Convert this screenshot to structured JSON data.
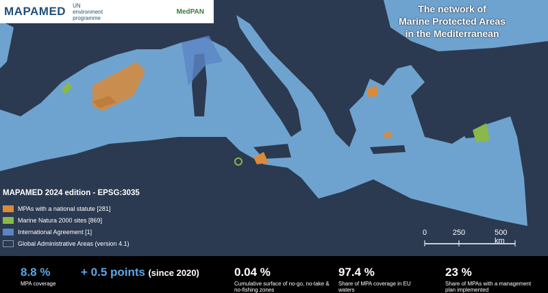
{
  "logo": {
    "brand": "MAPAMED",
    "partners": [
      "UN environment programme",
      "MedPAN"
    ]
  },
  "title": [
    "The network of",
    "Marine Protected Areas",
    "in the Mediterranean"
  ],
  "legend": {
    "title": "MAPAMED 2024 edition - EPSG:3035",
    "items": [
      {
        "label": "MPAs with a national statute [281]",
        "color": "#d98a3a"
      },
      {
        "label": "Marine Natura 2000 sites [869]",
        "color": "#8ab84a"
      },
      {
        "label": "International Agreement [1]",
        "color": "#5b84c4"
      },
      {
        "label": "Global Administrative Areas (version 4.1)",
        "color": "#2b3a50"
      }
    ]
  },
  "scale_bar": [
    "0",
    "250",
    "500 km"
  ],
  "stats": [
    {
      "value": "8.8 %",
      "label": "MPA coverage"
    },
    {
      "value": "+ 0.5 points",
      "note": "(since 2020)"
    },
    {
      "value": "0.04 %",
      "label": "Cumulative surface of no-go, no-take & no-fishing zones"
    },
    {
      "value": "97.4 %",
      "label": "Share of MPA coverage in EU waters"
    },
    {
      "value": "23 %",
      "label": "Share of MPAs with a management plan implemented"
    }
  ]
}
